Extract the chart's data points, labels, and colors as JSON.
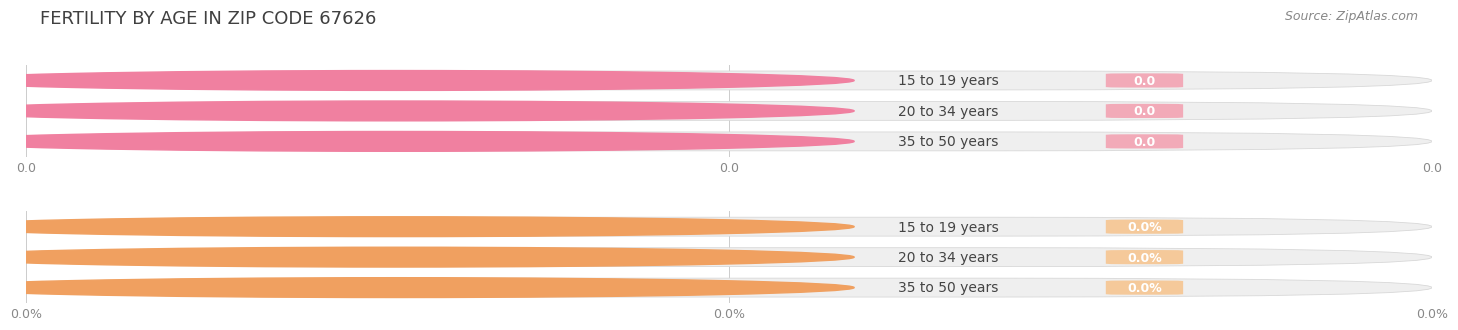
{
  "title": "FERTILITY BY AGE IN ZIP CODE 67626",
  "source": "Source: ZipAtlas.com",
  "categories": [
    "15 to 19 years",
    "20 to 34 years",
    "35 to 50 years"
  ],
  "values_count": [
    0.0,
    0.0,
    0.0
  ],
  "values_pct": [
    0.0,
    0.0,
    0.0
  ],
  "xtick_labels_count": [
    "0.0",
    "0.0",
    "0.0"
  ],
  "xtick_labels_pct": [
    "0.0%",
    "0.0%",
    "0.0%"
  ],
  "bar_pill_color_top": "#f2aab8",
  "bar_circle_color_top": "#f080a0",
  "bar_pill_color_bottom": "#f5c99a",
  "bar_circle_color_bottom": "#f0a060",
  "bar_bg_color": "#eeeeee",
  "bar_bg_border": "#d8d8d8",
  "title_color": "#404040",
  "source_color": "#888888",
  "tick_color": "#888888",
  "cat_text_color": "#444444",
  "bg_color": "#ffffff",
  "grid_color": "#cccccc",
  "title_fontsize": 13,
  "source_fontsize": 9,
  "label_fontsize": 9,
  "category_fontsize": 10,
  "tick_fontsize": 9
}
